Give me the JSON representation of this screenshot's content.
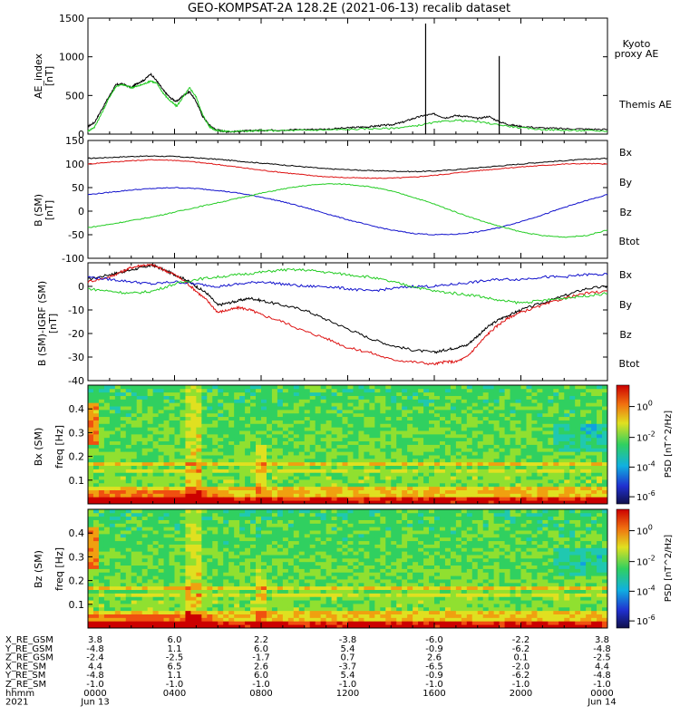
{
  "title": "GEO-KOMPSAT-2A 128.2E (2021-06-13) recalib dataset",
  "colors": {
    "black": "#000000",
    "green": "#22cc22",
    "blue": "#1010cc",
    "red": "#dd1111"
  },
  "panels": {
    "ae": {
      "ylabel": "AE_index",
      "unit": "[nT]",
      "legend": [
        {
          "text": "Kyoto",
          "color": "#22cc22"
        },
        {
          "text": "proxy AE",
          "color": "#22cc22"
        },
        {
          "text": "Themis AE",
          "color": "#000000"
        }
      ]
    },
    "bsm": {
      "ylabel": "B (SM)",
      "unit": "[nT]",
      "legend": [
        {
          "text": "Bx",
          "color": "#1010cc"
        },
        {
          "text": "By",
          "color": "#22cc22"
        },
        {
          "text": "Bz",
          "color": "#dd1111"
        },
        {
          "text": "Btot",
          "color": "#000000"
        }
      ]
    },
    "bres": {
      "ylabel": "B (SM)-IGRF (SM)",
      "unit": "[nT]",
      "legend": [
        {
          "text": "Bx",
          "color": "#1010cc"
        },
        {
          "text": "By",
          "color": "#22cc22"
        },
        {
          "text": "Bz",
          "color": "#dd1111"
        },
        {
          "text": "Btot",
          "color": "#000000"
        }
      ]
    },
    "spec1": {
      "ylabel": "Bx (SM)",
      "sublabel": "freq [Hz]",
      "cb_label": "PSD [nT^2/Hz]"
    },
    "spec2": {
      "ylabel": "Bz (SM)",
      "sublabel": "freq [Hz]",
      "cb_label": "PSD [nT^2/Hz]"
    }
  },
  "chart_data": [
    {
      "type": "line",
      "id": "ae",
      "xlabel": "",
      "ylabel": "AE_index [nT]",
      "ylim": [
        0,
        1500
      ],
      "yticks": [
        0,
        500,
        1000,
        1500
      ],
      "xlim": [
        0,
        24
      ],
      "series": [
        {
          "name": "Themis AE",
          "color": "#000000",
          "x": [
            0,
            0.3,
            0.6,
            1.0,
            1.3,
            1.6,
            2.0,
            2.3,
            2.6,
            2.9,
            3.2,
            3.5,
            3.8,
            4.1,
            4.4,
            4.7,
            5.0,
            5.3,
            5.6,
            5.9,
            6.2,
            6.5,
            7.0,
            7.5,
            8.0,
            9.0,
            10.0,
            11.0,
            12.0,
            12.5,
            13.0,
            13.5,
            14.0,
            14.5,
            15.0,
            15.5,
            16.0,
            16.5,
            17.0,
            17.5,
            18.0,
            18.5,
            19.0,
            19.5,
            20.0,
            21.0,
            22.0,
            23.0,
            24.0
          ],
          "y": [
            100,
            150,
            300,
            500,
            640,
            650,
            600,
            660,
            700,
            780,
            680,
            560,
            470,
            420,
            500,
            550,
            420,
            230,
            120,
            60,
            40,
            30,
            35,
            45,
            50,
            55,
            60,
            65,
            80,
            90,
            95,
            110,
            120,
            150,
            200,
            240,
            260,
            210,
            240,
            230,
            200,
            230,
            160,
            120,
            100,
            80,
            70,
            65,
            60
          ]
        },
        {
          "name": "Kyoto proxy AE",
          "color": "#22cc22",
          "x": [
            0,
            0.3,
            0.6,
            1.0,
            1.3,
            1.6,
            2.0,
            2.3,
            2.6,
            2.9,
            3.2,
            3.5,
            3.8,
            4.1,
            4.4,
            4.7,
            5.0,
            5.3,
            5.6,
            5.9,
            6.2,
            6.5,
            7.0,
            7.5,
            8.0,
            9.0,
            10.0,
            11.0,
            12.0,
            13.0,
            14.0,
            15.0,
            16.0,
            17.0,
            18.0,
            19.0,
            20.0,
            21.0,
            22.0,
            23.0,
            24.0
          ],
          "y": [
            40,
            90,
            250,
            480,
            620,
            640,
            600,
            620,
            650,
            690,
            650,
            520,
            430,
            360,
            480,
            600,
            480,
            250,
            100,
            50,
            40,
            35,
            40,
            40,
            45,
            45,
            50,
            55,
            60,
            70,
            75,
            100,
            150,
            180,
            160,
            120,
            80,
            60,
            50,
            45,
            40
          ]
        }
      ],
      "spikes": [
        {
          "x": 15.6,
          "y": 1430
        },
        {
          "x": 19.0,
          "y": 1010
        }
      ]
    },
    {
      "type": "line",
      "id": "bsm",
      "xlabel": "",
      "ylabel": "B (SM) [nT]",
      "ylim": [
        -100,
        150
      ],
      "yticks": [
        -100,
        -50,
        0,
        50,
        100,
        150
      ],
      "xlim": [
        0,
        24
      ],
      "series": [
        {
          "name": "Btot",
          "color": "#000000",
          "x": [
            0,
            1,
            2,
            3,
            4,
            5,
            6,
            7,
            8,
            9,
            10,
            11,
            12,
            13,
            14,
            15,
            16,
            17,
            18,
            19,
            20,
            21,
            22,
            23,
            24
          ],
          "y": [
            112,
            114,
            116,
            117,
            116,
            113,
            110,
            106,
            102,
            98,
            94,
            90,
            88,
            86,
            85,
            84,
            85,
            88,
            92,
            96,
            100,
            104,
            107,
            110,
            112
          ]
        },
        {
          "name": "Bz",
          "color": "#dd1111",
          "x": [
            0,
            1,
            2,
            3,
            4,
            5,
            6,
            7,
            8,
            9,
            10,
            11,
            12,
            13,
            14,
            15,
            16,
            17,
            18,
            19,
            20,
            21,
            22,
            23,
            24
          ],
          "y": [
            100,
            104,
            107,
            109,
            108,
            104,
            99,
            93,
            87,
            82,
            77,
            73,
            71,
            70,
            70,
            72,
            76,
            81,
            86,
            90,
            94,
            97,
            100,
            101,
            100
          ]
        },
        {
          "name": "Bx",
          "color": "#1010cc",
          "x": [
            0,
            1,
            2,
            3,
            4,
            5,
            6,
            7,
            8,
            9,
            10,
            11,
            12,
            13,
            14,
            15,
            16,
            17,
            18,
            19,
            20,
            21,
            22,
            23,
            24
          ],
          "y": [
            35,
            40,
            45,
            48,
            50,
            48,
            44,
            38,
            30,
            20,
            8,
            -5,
            -18,
            -30,
            -40,
            -47,
            -50,
            -49,
            -44,
            -35,
            -22,
            -8,
            8,
            22,
            35
          ]
        },
        {
          "name": "By",
          "color": "#22cc22",
          "x": [
            0,
            1,
            2,
            3,
            4,
            5,
            6,
            7,
            8,
            9,
            10,
            11,
            12,
            13,
            14,
            15,
            16,
            17,
            18,
            19,
            20,
            21,
            22,
            23,
            24
          ],
          "y": [
            -35,
            -28,
            -20,
            -12,
            -2,
            8,
            18,
            28,
            38,
            47,
            54,
            58,
            57,
            52,
            43,
            30,
            15,
            -2,
            -18,
            -32,
            -44,
            -52,
            -55,
            -52,
            -40
          ]
        }
      ]
    },
    {
      "type": "line",
      "id": "bres",
      "xlabel": "",
      "ylabel": "B (SM)-IGRF (SM) [nT]",
      "ylim": [
        -40,
        10
      ],
      "yticks": [
        -40,
        -30,
        -20,
        -10,
        0
      ],
      "xlim": [
        0,
        24
      ],
      "series": [
        {
          "name": "Btot",
          "color": "#000000",
          "x": [
            0,
            1,
            1.5,
            2,
            2.5,
            3,
            3.5,
            4,
            4.5,
            5,
            5.5,
            6,
            6.5,
            7,
            7.5,
            8,
            9,
            10,
            11,
            12,
            13,
            14,
            15,
            16,
            16.5,
            17,
            17.5,
            18,
            18.5,
            19,
            19.5,
            20,
            21,
            22,
            23,
            24
          ],
          "y": [
            3,
            5,
            6,
            7,
            8,
            9,
            7,
            5,
            3,
            0,
            -3,
            -8,
            -7,
            -6,
            -5,
            -6,
            -8,
            -10,
            -14,
            -18,
            -22,
            -25,
            -27,
            -28,
            -27,
            -26,
            -25,
            -21,
            -17,
            -14,
            -12,
            -10,
            -7,
            -4,
            -1,
            0
          ]
        },
        {
          "name": "Bz",
          "color": "#dd1111",
          "x": [
            0,
            1,
            1.5,
            2,
            2.5,
            3,
            3.5,
            4,
            4.5,
            5,
            5.5,
            6,
            6.5,
            7,
            7.5,
            8,
            9,
            10,
            11,
            12,
            13,
            14,
            15,
            16,
            16.5,
            17,
            17.5,
            18,
            18.5,
            19,
            19.5,
            20,
            21,
            22,
            23,
            24
          ],
          "y": [
            2,
            4,
            6,
            8,
            9,
            9,
            7,
            5,
            2,
            -2,
            -6,
            -11,
            -10,
            -9,
            -10,
            -12,
            -15,
            -19,
            -22,
            -26,
            -28,
            -31,
            -32,
            -33,
            -32,
            -32,
            -30,
            -25,
            -20,
            -16,
            -13,
            -11,
            -8,
            -5,
            -3,
            -2
          ]
        },
        {
          "name": "Bx",
          "color": "#1010cc",
          "x": [
            0,
            1,
            2,
            3,
            4,
            5,
            6,
            7,
            8,
            9,
            10,
            11,
            12,
            13,
            14,
            15,
            16,
            17,
            18,
            19,
            20,
            21,
            22,
            23,
            24
          ],
          "y": [
            4,
            3,
            2,
            1,
            2,
            1,
            0,
            1,
            2,
            1,
            0,
            0,
            -1,
            -2,
            -1,
            0,
            0,
            1,
            2,
            3,
            3,
            4,
            4,
            5,
            5
          ]
        },
        {
          "name": "By",
          "color": "#22cc22",
          "x": [
            0,
            1,
            2,
            3,
            4,
            5,
            6,
            7,
            8,
            9,
            10,
            11,
            12,
            13,
            14,
            15,
            16,
            17,
            18,
            19,
            20,
            21,
            22,
            23,
            24
          ],
          "y": [
            -1,
            -2,
            -3,
            -2,
            1,
            3,
            4,
            5,
            6,
            7,
            7,
            6,
            5,
            4,
            2,
            0,
            -2,
            -3,
            -4,
            -6,
            -7,
            -6,
            -5,
            -4,
            -3
          ]
        }
      ]
    },
    {
      "type": "heatmap",
      "id": "spec1",
      "ylabel": "Bx (SM) freq [Hz]",
      "ylim": [
        0,
        0.5
      ],
      "yticks": [
        0.1,
        0.2,
        0.3,
        0.4
      ],
      "xlim": [
        0,
        24
      ],
      "colorbar": {
        "label": "PSD [nT^2/Hz]",
        "ticks": [
          "10^0",
          "10^-2",
          "10^-4",
          "10^-6"
        ]
      }
    },
    {
      "type": "heatmap",
      "id": "spec2",
      "ylabel": "Bz (SM) freq [Hz]",
      "ylim": [
        0,
        0.5
      ],
      "yticks": [
        0.1,
        0.2,
        0.3,
        0.4
      ],
      "xlim": [
        0,
        24
      ],
      "colorbar": {
        "label": "PSD [nT^2/Hz]",
        "ticks": [
          "10^0",
          "10^-2",
          "10^-4",
          "10^-6"
        ]
      }
    }
  ],
  "ephemeris": {
    "rows": [
      {
        "label": "X_RE_GSM",
        "values": [
          "3.8",
          "6.0",
          "2.2",
          "-3.8",
          "-6.0",
          "-2.2",
          "3.8"
        ]
      },
      {
        "label": "Y_RE_GSM",
        "values": [
          "-4.8",
          "1.1",
          "6.0",
          "5.4",
          "-0.9",
          "-6.2",
          "-4.8"
        ]
      },
      {
        "label": "Z_RE_GSM",
        "values": [
          "-2.4",
          "-2.5",
          "-1.7",
          "0.7",
          "2.6",
          "0.1",
          "-2.5"
        ]
      },
      {
        "label": "X_RE_SM",
        "values": [
          "4.4",
          "6.5",
          "2.6",
          "-3.7",
          "-6.5",
          "-2.0",
          "4.4"
        ]
      },
      {
        "label": "Y_RE_SM",
        "values": [
          "-4.8",
          "1.1",
          "6.0",
          "5.4",
          "-0.9",
          "-6.2",
          "-4.8"
        ]
      },
      {
        "label": "Z_RE_SM",
        "values": [
          "-1.0",
          "-1.0",
          "-1.0",
          "-1.0",
          "-1.0",
          "-1.0",
          "-1.0"
        ]
      },
      {
        "label": "hhmm",
        "values": [
          "0000",
          "0400",
          "0800",
          "1200",
          "1600",
          "2000",
          "0000"
        ]
      }
    ],
    "year": "2021",
    "start_date": "Jun 13",
    "end_date": "Jun 14"
  }
}
